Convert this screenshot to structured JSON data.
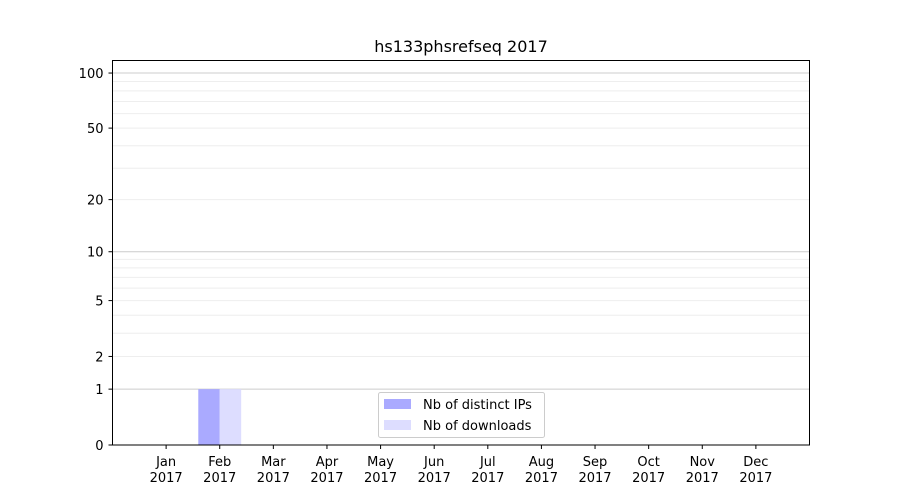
{
  "chart_data": {
    "type": "bar",
    "title": "hs133phsrefseq 2017",
    "xlabel": "",
    "ylabel": "",
    "y_scale": "log(1+y)",
    "ylim": [
      0,
      117
    ],
    "xlim": [
      0,
      13
    ],
    "grid": true,
    "legend_position": "lower-center",
    "yticks": [
      0,
      1,
      2,
      5,
      10,
      20,
      50,
      100
    ],
    "categories": [
      "Jan\n2017",
      "Feb\n2017",
      "Mar\n2017",
      "Apr\n2017",
      "May\n2017",
      "Jun\n2017",
      "Jul\n2017",
      "Aug\n2017",
      "Sep\n2017",
      "Oct\n2017",
      "Nov\n2017",
      "Dec\n2017"
    ],
    "category_lines": [
      [
        "Jan",
        "2017"
      ],
      [
        "Feb",
        "2017"
      ],
      [
        "Mar",
        "2017"
      ],
      [
        "Apr",
        "2017"
      ],
      [
        "May",
        "2017"
      ],
      [
        "Jun",
        "2017"
      ],
      [
        "Jul",
        "2017"
      ],
      [
        "Aug",
        "2017"
      ],
      [
        "Sep",
        "2017"
      ],
      [
        "Oct",
        "2017"
      ],
      [
        "Nov",
        "2017"
      ],
      [
        "Dec",
        "2017"
      ]
    ],
    "series": [
      {
        "name": "Nb of distinct IPs",
        "color": "#aaaaff",
        "values": [
          0,
          1,
          0,
          0,
          0,
          0,
          0,
          0,
          0,
          0,
          0,
          0
        ]
      },
      {
        "name": "Nb of downloads",
        "color": "#ddddff",
        "values": [
          0,
          1,
          0,
          0,
          0,
          0,
          0,
          0,
          0,
          0,
          0,
          0
        ]
      }
    ]
  }
}
